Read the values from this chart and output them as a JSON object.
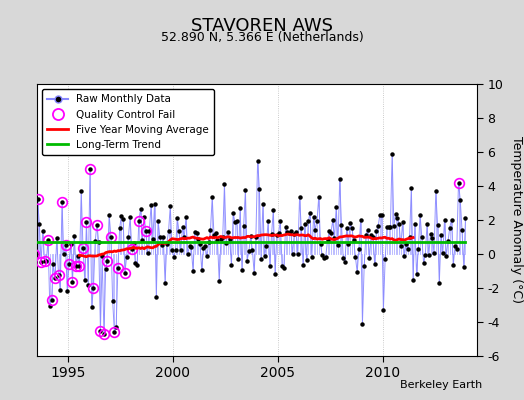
{
  "title": "STAVOREN AWS",
  "subtitle": "52.890 N, 5.366 E (Netherlands)",
  "ylabel": "Temperature Anomaly (°C)",
  "watermark": "Berkeley Earth",
  "xlim": [
    1993.5,
    2014.5
  ],
  "ylim": [
    -6,
    10
  ],
  "yticks": [
    -6,
    -4,
    -2,
    0,
    2,
    4,
    6,
    8,
    10
  ],
  "xticks": [
    1995,
    2000,
    2005,
    2010
  ],
  "fig_bg": "#d8d8d8",
  "plot_bg": "#ffffff",
  "line_color": "#8888ff",
  "stem_color": "#aaaaff",
  "marker_color": "#000000",
  "qc_color": "#ff00ff",
  "ma_color": "#ff0000",
  "trend_color": "#00bb00",
  "trend_value": 0.7,
  "seed": 42
}
